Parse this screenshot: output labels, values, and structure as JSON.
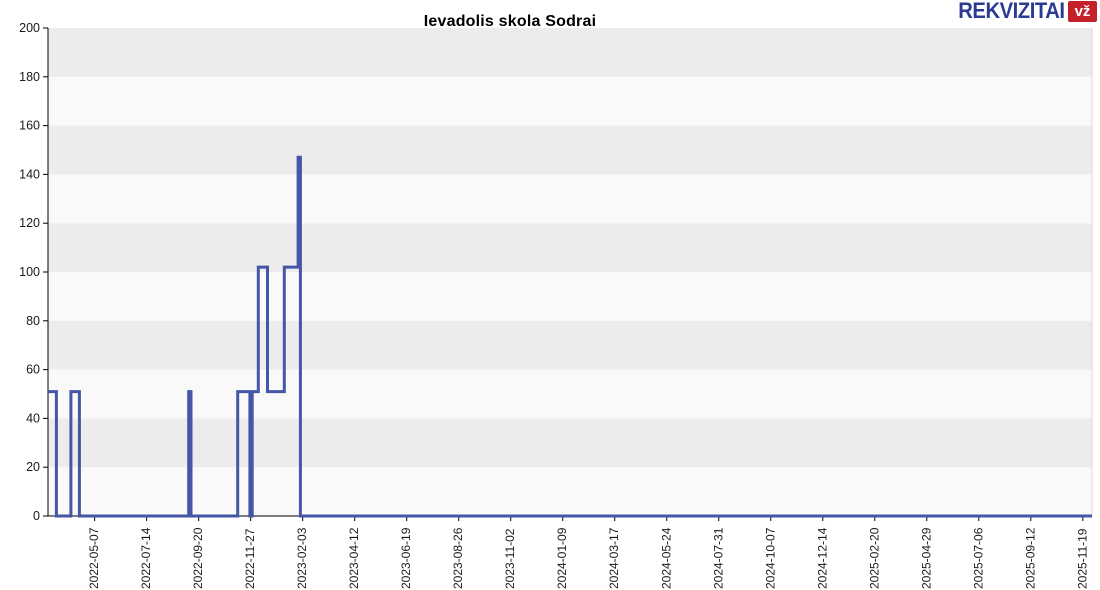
{
  "header": {
    "logo": {
      "text": "REKVIZITAI",
      "badge": "vž",
      "blue": "#2b3b92",
      "red": "#c42029"
    }
  },
  "chart_data": {
    "type": "line",
    "step": "after",
    "title": "Ievadolis skola Sodrai",
    "xlabel": "",
    "ylabel": "",
    "legend": "none",
    "grid": "alternating-horizontal-bands",
    "ylim": [
      0,
      200
    ],
    "y_ticks": [
      0,
      20,
      40,
      60,
      80,
      100,
      120,
      140,
      160,
      180,
      200
    ],
    "x_range": [
      "2022-03-07",
      "2025-12-01"
    ],
    "x_tick_labels": [
      "2022-05-07",
      "2022-07-14",
      "2022-09-20",
      "2022-11-27",
      "2023-02-03",
      "2023-04-12",
      "2023-06-19",
      "2023-08-26",
      "2023-11-02",
      "2024-01-09",
      "2024-03-17",
      "2024-05-24",
      "2024-07-31",
      "2024-10-07",
      "2024-12-14",
      "2025-02-20",
      "2025-04-29",
      "2025-07-06",
      "2025-09-12",
      "2025-11-19"
    ],
    "series": [
      {
        "name": "Ievadolis skola Sodrai",
        "color": "#4456a5",
        "steps": [
          [
            "2022-03-07",
            51
          ],
          [
            "2022-03-18",
            0
          ],
          [
            "2022-04-06",
            51
          ],
          [
            "2022-04-17",
            0
          ],
          [
            "2022-09-07",
            51
          ],
          [
            "2022-09-10",
            0
          ],
          [
            "2022-11-10",
            51
          ],
          [
            "2022-11-26",
            0
          ],
          [
            "2022-11-29",
            51
          ],
          [
            "2022-12-07",
            102
          ],
          [
            "2022-12-19",
            51
          ],
          [
            "2023-01-10",
            102
          ],
          [
            "2023-01-28",
            147
          ],
          [
            "2023-01-31",
            0
          ],
          [
            "2025-12-01",
            0
          ]
        ]
      }
    ],
    "colors": {
      "band_dark": "#ececec",
      "band_light": "#f9f9f9",
      "axis": "#000000",
      "tick_label": "#1a1a1a",
      "plot_right_border": "#d9d9d9"
    }
  }
}
